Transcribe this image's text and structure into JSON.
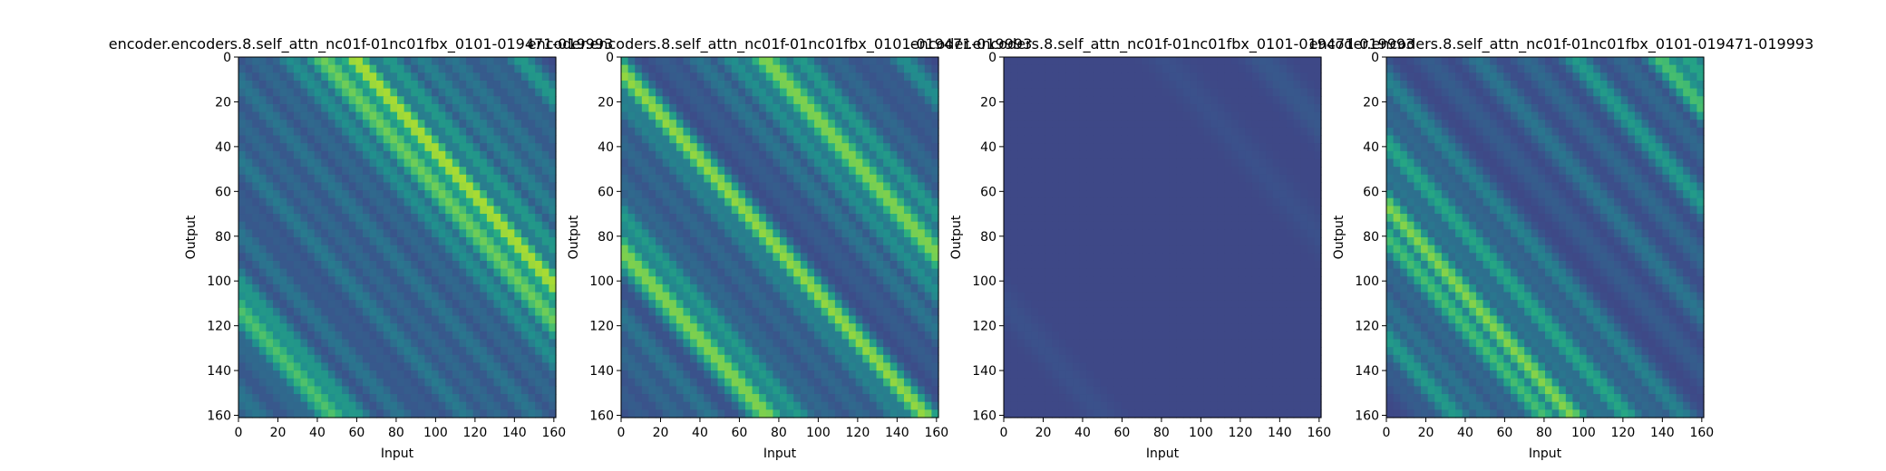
{
  "chart_data": [
    {
      "type": "heatmap",
      "title": "encoder.encoders.8.self_attn_nc01f-01nc01fbx_0101-019471-019993",
      "xlabel": "Input",
      "ylabel": "Output",
      "xticks": [
        "0",
        "20",
        "40",
        "60",
        "80",
        "100",
        "120",
        "140",
        "160"
      ],
      "yticks": [
        "0",
        "20",
        "40",
        "60",
        "80",
        "100",
        "120",
        "140",
        "160"
      ],
      "xlim": [
        0,
        161
      ],
      "ylim": [
        161,
        0
      ],
      "colormap": "viridis",
      "bands": [
        {
          "offset": -150,
          "value": 0.4,
          "width": 3
        },
        {
          "offset": -128,
          "value": 0.35,
          "width": 3
        },
        {
          "offset": -112,
          "value": 0.72,
          "width": 3
        },
        {
          "offset": -100,
          "value": 0.55,
          "width": 2.5
        },
        {
          "offset": -78,
          "value": 0.4,
          "width": 2.5
        },
        {
          "offset": -62,
          "value": 0.3,
          "width": 2.5
        },
        {
          "offset": -45,
          "value": 0.42,
          "width": 2.5
        },
        {
          "offset": -28,
          "value": 0.35,
          "width": 2.5
        },
        {
          "offset": -10,
          "value": 0.4,
          "width": 2.5
        },
        {
          "offset": 8,
          "value": 0.35,
          "width": 2.5
        },
        {
          "offset": 25,
          "value": 0.5,
          "width": 2.5
        },
        {
          "offset": 42,
          "value": 0.78,
          "width": 3
        },
        {
          "offset": 58,
          "value": 0.9,
          "width": 2.5
        },
        {
          "offset": 75,
          "value": 0.55,
          "width": 2.5
        },
        {
          "offset": 92,
          "value": 0.45,
          "width": 2.5
        },
        {
          "offset": 108,
          "value": 0.4,
          "width": 2.5
        },
        {
          "offset": 125,
          "value": 0.35,
          "width": 2.5
        },
        {
          "offset": 142,
          "value": 0.55,
          "width": 2.5
        }
      ]
    },
    {
      "type": "heatmap",
      "title": "encoder.encoders.8.self_attn_nc01f-01nc01fbx_0101-019471-019993",
      "xlabel": "Input",
      "ylabel": "Output",
      "xticks": [
        "0",
        "20",
        "40",
        "60",
        "80",
        "100",
        "120",
        "140",
        "160"
      ],
      "yticks": [
        "0",
        "20",
        "40",
        "60",
        "80",
        "100",
        "120",
        "140",
        "160"
      ],
      "xlim": [
        0,
        161
      ],
      "ylim": [
        161,
        0
      ],
      "colormap": "viridis",
      "bands": [
        {
          "offset": -150,
          "value": 0.3,
          "width": 2.5
        },
        {
          "offset": -132,
          "value": 0.35,
          "width": 2.5
        },
        {
          "offset": -115,
          "value": 0.4,
          "width": 2.5
        },
        {
          "offset": -86,
          "value": 0.82,
          "width": 3
        },
        {
          "offset": -70,
          "value": 0.55,
          "width": 2.5
        },
        {
          "offset": -55,
          "value": 0.35,
          "width": 2.5
        },
        {
          "offset": -38,
          "value": 0.35,
          "width": 2.5
        },
        {
          "offset": -20,
          "value": 0.45,
          "width": 2.5
        },
        {
          "offset": -6,
          "value": 0.85,
          "width": 2.5
        },
        {
          "offset": 0,
          "value": 0.45,
          "width": 1
        },
        {
          "offset": 20,
          "value": 0.3,
          "width": 2.5
        },
        {
          "offset": 38,
          "value": 0.4,
          "width": 2.5
        },
        {
          "offset": 55,
          "value": 0.5,
          "width": 2.5
        },
        {
          "offset": 72,
          "value": 0.82,
          "width": 3
        },
        {
          "offset": 90,
          "value": 0.55,
          "width": 2.5
        },
        {
          "offset": 108,
          "value": 0.35,
          "width": 2.5
        },
        {
          "offset": 125,
          "value": 0.3,
          "width": 2.5
        },
        {
          "offset": 142,
          "value": 0.5,
          "width": 2.5
        }
      ]
    },
    {
      "type": "heatmap",
      "title": "encoder.encoders.8.self_attn_nc01f-01nc01fbx_0101-019471-019993",
      "xlabel": "Input",
      "ylabel": "Output",
      "xticks": [
        "0",
        "20",
        "40",
        "60",
        "80",
        "100",
        "120",
        "140",
        "160"
      ],
      "yticks": [
        "0",
        "20",
        "40",
        "60",
        "80",
        "100",
        "120",
        "140",
        "160"
      ],
      "xlim": [
        0,
        161
      ],
      "ylim": [
        161,
        0
      ],
      "colormap": "viridis",
      "bands": [
        {
          "offset": -140,
          "value": 0.22,
          "width": 3
        },
        {
          "offset": -110,
          "value": 0.25,
          "width": 3
        },
        {
          "offset": -85,
          "value": 0.22,
          "width": 3
        },
        {
          "offset": -60,
          "value": 0.22,
          "width": 3
        },
        {
          "offset": -35,
          "value": 0.18,
          "width": 3
        },
        {
          "offset": 0,
          "value": 0.02,
          "width": 8
        },
        {
          "offset": 30,
          "value": 0.2,
          "width": 3
        },
        {
          "offset": 55,
          "value": 0.22,
          "width": 3
        },
        {
          "offset": 80,
          "value": 0.25,
          "width": 3
        },
        {
          "offset": 105,
          "value": 0.22,
          "width": 3
        },
        {
          "offset": 130,
          "value": 0.28,
          "width": 3
        }
      ]
    },
    {
      "type": "heatmap",
      "title": "encoder.encoders.8.self_attn_nc01f-01nc01fbx_0101-019471-019993",
      "xlabel": "Input",
      "ylabel": "Output",
      "xticks": [
        "0",
        "20",
        "40",
        "60",
        "80",
        "100",
        "120",
        "140",
        "160"
      ],
      "yticks": [
        "0",
        "20",
        "40",
        "60",
        "80",
        "100",
        "120",
        "140",
        "160"
      ],
      "xlim": [
        0,
        161
      ],
      "ylim": [
        161,
        0
      ],
      "colormap": "viridis",
      "bands": [
        {
          "offset": -140,
          "value": 0.3,
          "width": 2.5
        },
        {
          "offset": -125,
          "value": 0.55,
          "width": 2.5
        },
        {
          "offset": -110,
          "value": 0.4,
          "width": 2.5
        },
        {
          "offset": -95,
          "value": 0.35,
          "width": 2.5
        },
        {
          "offset": -80,
          "value": 0.7,
          "width": 2.5
        },
        {
          "offset": -66,
          "value": 0.82,
          "width": 2.5
        },
        {
          "offset": -52,
          "value": 0.4,
          "width": 2.5
        },
        {
          "offset": -38,
          "value": 0.6,
          "width": 2.5
        },
        {
          "offset": -24,
          "value": 0.35,
          "width": 2.5
        },
        {
          "offset": -10,
          "value": 0.45,
          "width": 2.5
        },
        {
          "offset": 0,
          "value": 0.05,
          "width": 1.2
        },
        {
          "offset": 20,
          "value": 0.3,
          "width": 2.5
        },
        {
          "offset": 45,
          "value": 0.4,
          "width": 2.5
        },
        {
          "offset": 70,
          "value": 0.35,
          "width": 2.5
        },
        {
          "offset": 95,
          "value": 0.55,
          "width": 2.5
        },
        {
          "offset": 118,
          "value": 0.35,
          "width": 2.5
        },
        {
          "offset": 138,
          "value": 0.72,
          "width": 2.5
        },
        {
          "offset": 152,
          "value": 0.6,
          "width": 2.5
        }
      ]
    }
  ]
}
